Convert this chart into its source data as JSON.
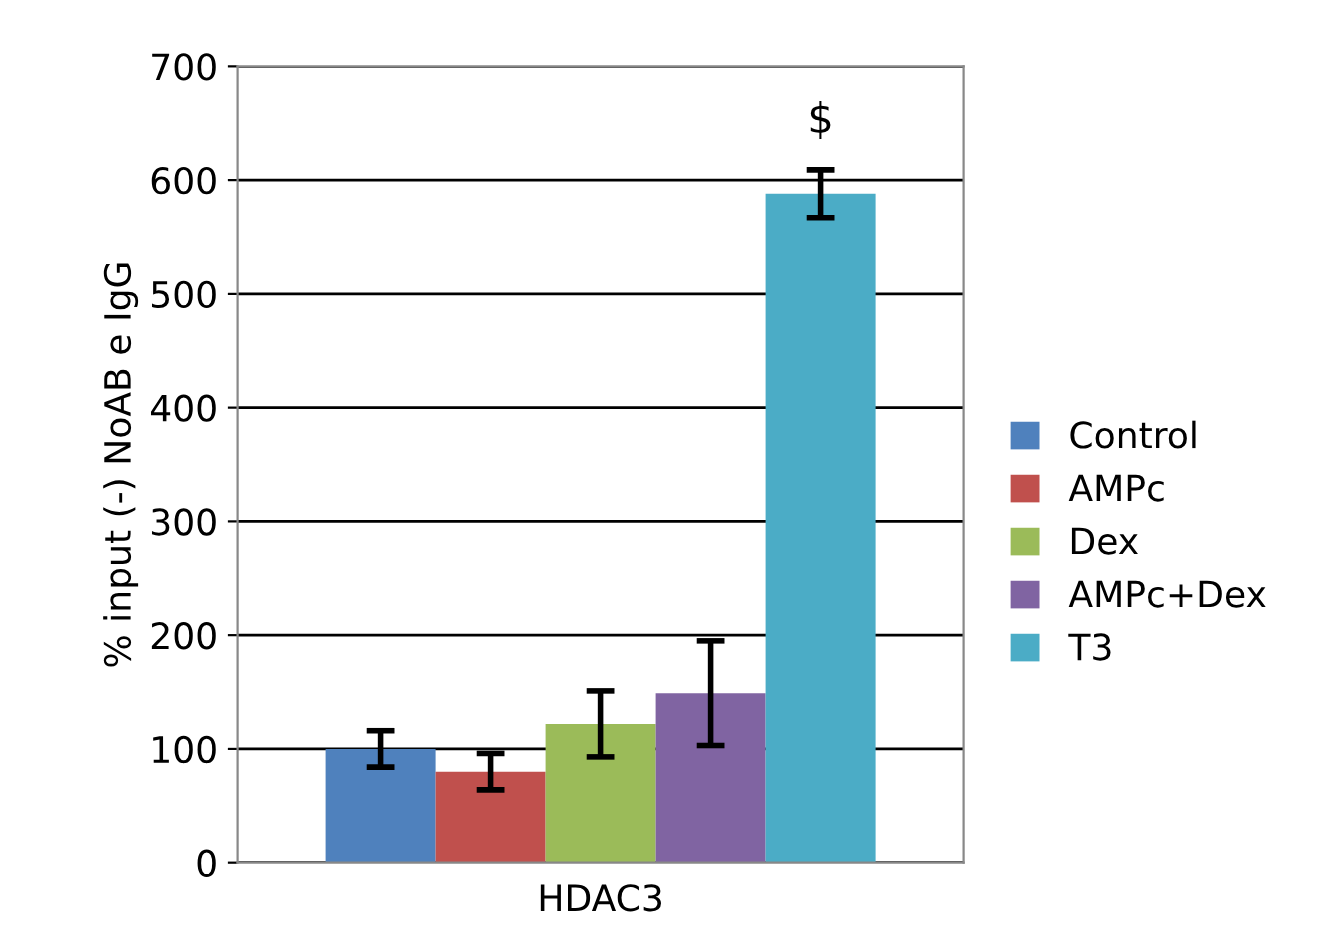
{
  "chart_data": {
    "type": "bar",
    "ylabel": "% input (-) NoAB e IgG",
    "xlabel": "HDAC3",
    "categories": [
      null,
      null,
      null,
      null,
      null
    ],
    "series": [
      {
        "name": "Control",
        "color": "#4f81bd",
        "values": [
          100,
          null,
          null,
          null,
          null
        ],
        "errors": [
          16,
          null,
          null,
          null,
          null
        ]
      },
      {
        "name": "AMPc",
        "color": "#c0504d",
        "values": [
          null,
          80,
          null,
          null,
          null
        ],
        "errors": [
          null,
          16,
          null,
          null,
          null
        ]
      },
      {
        "name": "Dex",
        "color": "#9bbb59",
        "values": [
          null,
          null,
          122,
          null,
          null
        ],
        "errors": [
          null,
          null,
          29,
          null,
          null
        ]
      },
      {
        "name": "AMPc+Dex",
        "color": "#8064a2",
        "values": [
          null,
          null,
          null,
          149,
          null
        ],
        "errors": [
          null,
          null,
          null,
          46,
          null
        ]
      },
      {
        "name": "T3",
        "color": "#4bacc6",
        "values": [
          null,
          null,
          null,
          null,
          588
        ],
        "errors": [
          null,
          null,
          null,
          null,
          21
        ]
      }
    ],
    "annotations": [
      "$"
    ],
    "ylim": [
      0,
      700
    ],
    "yticks": [
      0,
      100,
      200,
      300,
      400,
      500,
      600,
      700
    ],
    "grid": "y",
    "legend": "right"
  }
}
